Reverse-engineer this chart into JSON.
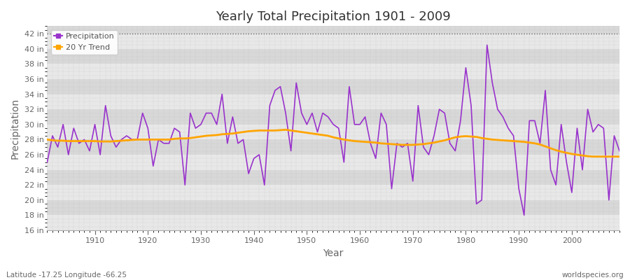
{
  "title": "Yearly Total Precipitation 1901 - 2009",
  "xlabel": "Year",
  "ylabel": "Precipitation",
  "lat_lon_label": "Latitude -17.25 Longitude -66.25",
  "source_label": "worldspecies.org",
  "legend_labels": [
    "Precipitation",
    "20 Yr Trend"
  ],
  "precip_color": "#9933CC",
  "trend_color": "#FFA500",
  "band_color_light": "#E8E8E8",
  "band_color_dark": "#D8D8D8",
  "ylim_low": 16,
  "ylim_high": 43,
  "ytick_step": 2,
  "years": [
    1901,
    1902,
    1903,
    1904,
    1905,
    1906,
    1907,
    1908,
    1909,
    1910,
    1911,
    1912,
    1913,
    1914,
    1915,
    1916,
    1917,
    1918,
    1919,
    1920,
    1921,
    1922,
    1923,
    1924,
    1925,
    1926,
    1927,
    1928,
    1929,
    1930,
    1931,
    1932,
    1933,
    1934,
    1935,
    1936,
    1937,
    1938,
    1939,
    1940,
    1941,
    1942,
    1943,
    1944,
    1945,
    1946,
    1947,
    1948,
    1949,
    1950,
    1951,
    1952,
    1953,
    1954,
    1955,
    1956,
    1957,
    1958,
    1959,
    1960,
    1961,
    1962,
    1963,
    1964,
    1965,
    1966,
    1967,
    1968,
    1969,
    1970,
    1971,
    1972,
    1973,
    1974,
    1975,
    1976,
    1977,
    1978,
    1979,
    1980,
    1981,
    1982,
    1983,
    1984,
    1985,
    1986,
    1987,
    1988,
    1989,
    1990,
    1991,
    1992,
    1993,
    1994,
    1995,
    1996,
    1997,
    1998,
    1999,
    2000,
    2001,
    2002,
    2003,
    2004,
    2005,
    2006,
    2007,
    2008,
    2009
  ],
  "precip": [
    25.0,
    28.5,
    27.0,
    30.0,
    26.0,
    29.5,
    27.5,
    28.0,
    26.5,
    30.0,
    26.0,
    32.5,
    28.5,
    27.0,
    28.0,
    28.5,
    28.0,
    28.0,
    31.5,
    29.5,
    24.5,
    28.0,
    27.5,
    27.5,
    29.5,
    29.0,
    22.0,
    31.5,
    29.5,
    30.0,
    31.5,
    31.5,
    30.0,
    34.0,
    27.5,
    31.0,
    27.5,
    28.0,
    23.5,
    25.5,
    26.0,
    22.0,
    32.5,
    34.5,
    35.0,
    31.5,
    26.5,
    35.5,
    31.5,
    30.0,
    31.5,
    29.0,
    31.5,
    31.0,
    30.0,
    29.5,
    25.0,
    35.0,
    30.0,
    30.0,
    31.0,
    27.5,
    25.5,
    31.5,
    30.0,
    21.5,
    27.5,
    27.0,
    27.5,
    22.5,
    32.5,
    27.0,
    26.0,
    28.5,
    32.0,
    31.5,
    27.5,
    26.5,
    30.5,
    37.5,
    32.5,
    19.5,
    20.0,
    40.5,
    35.5,
    32.0,
    31.0,
    29.5,
    28.5,
    21.5,
    18.0,
    30.5,
    30.5,
    27.5,
    34.5,
    24.0,
    22.0,
    30.0,
    25.0,
    21.0,
    29.5,
    24.0,
    32.0,
    29.0,
    30.0,
    29.5,
    20.0,
    28.5,
    26.5
  ],
  "trend": [
    28.0,
    27.9,
    27.85,
    27.85,
    27.8,
    27.8,
    27.8,
    27.8,
    27.8,
    27.8,
    27.75,
    27.75,
    27.75,
    27.8,
    27.85,
    27.9,
    27.95,
    28.0,
    28.0,
    28.0,
    28.0,
    28.0,
    28.0,
    28.0,
    28.1,
    28.15,
    28.15,
    28.2,
    28.3,
    28.4,
    28.5,
    28.55,
    28.6,
    28.7,
    28.75,
    28.8,
    28.9,
    29.0,
    29.1,
    29.15,
    29.2,
    29.2,
    29.2,
    29.2,
    29.25,
    29.3,
    29.2,
    29.1,
    29.0,
    28.9,
    28.8,
    28.7,
    28.6,
    28.5,
    28.3,
    28.15,
    28.0,
    27.9,
    27.8,
    27.75,
    27.7,
    27.65,
    27.6,
    27.5,
    27.45,
    27.4,
    27.35,
    27.3,
    27.3,
    27.3,
    27.35,
    27.4,
    27.5,
    27.6,
    27.75,
    27.9,
    28.1,
    28.3,
    28.4,
    28.45,
    28.4,
    28.35,
    28.2,
    28.1,
    28.0,
    27.95,
    27.9,
    27.85,
    27.8,
    27.75,
    27.7,
    27.6,
    27.5,
    27.35,
    27.1,
    26.85,
    26.6,
    26.4,
    26.25,
    26.1,
    26.0,
    25.9,
    25.8,
    25.75,
    25.75,
    25.75,
    25.75,
    25.75,
    25.75
  ]
}
